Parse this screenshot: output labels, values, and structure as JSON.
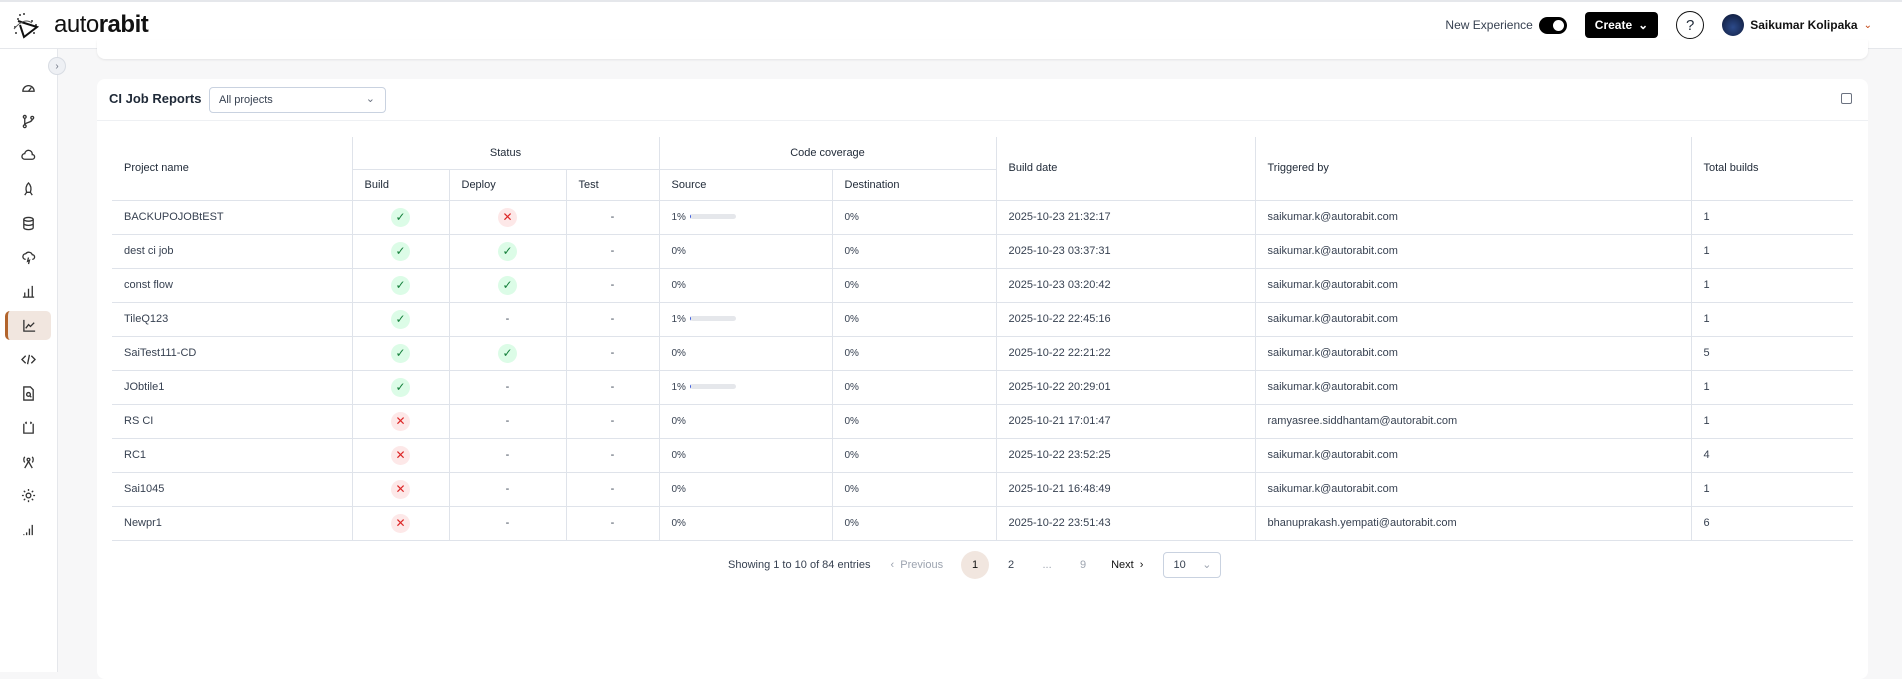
{
  "header": {
    "brand_light": "auto",
    "brand_bold": "rabit",
    "new_experience_label": "New Experience",
    "new_experience_on": true,
    "create_label": "Create",
    "help_label": "?",
    "user_name": "Saikumar Kolipaka"
  },
  "sidebar": {
    "items": [
      {
        "icon": "dashboard-gauge-icon"
      },
      {
        "icon": "git-branch-icon"
      },
      {
        "icon": "cloud-icon"
      },
      {
        "icon": "rocket-icon"
      },
      {
        "icon": "database-icon"
      },
      {
        "icon": "cloud-lightning-icon"
      },
      {
        "icon": "bar-chart-icon"
      },
      {
        "icon": "line-chart-icon",
        "active": true
      },
      {
        "icon": "code-icon"
      },
      {
        "icon": "file-search-icon"
      },
      {
        "icon": "code-file-icon"
      },
      {
        "icon": "antenna-icon"
      },
      {
        "icon": "gear-icon"
      },
      {
        "icon": "signal-icon"
      }
    ]
  },
  "report": {
    "title": "CI Job Reports",
    "project_filter": "All projects",
    "columns": {
      "project": "Project name",
      "status": "Status",
      "build": "Build",
      "deploy": "Deploy",
      "test": "Test",
      "coverage": "Code coverage",
      "source": "Source",
      "destination": "Destination",
      "build_date": "Build date",
      "triggered_by": "Triggered by",
      "total_builds": "Total builds"
    },
    "rows": [
      {
        "project": "BACKUPOJOBtEST",
        "build": "success",
        "deploy": "failed",
        "test": "-",
        "source": "1%",
        "source_pct": 1,
        "destination": "0%",
        "build_date": "2025-10-23 21:32:17",
        "triggered_by": "saikumar.k@autorabit.com",
        "total_builds": "1"
      },
      {
        "project": "dest ci job",
        "build": "success",
        "deploy": "success",
        "test": "-",
        "source": "0%",
        "source_pct": null,
        "destination": "0%",
        "build_date": "2025-10-23 03:37:31",
        "triggered_by": "saikumar.k@autorabit.com",
        "total_builds": "1"
      },
      {
        "project": "const flow",
        "build": "success",
        "deploy": "success",
        "test": "-",
        "source": "0%",
        "source_pct": null,
        "destination": "0%",
        "build_date": "2025-10-23 03:20:42",
        "triggered_by": "saikumar.k@autorabit.com",
        "total_builds": "1"
      },
      {
        "project": "TileQ123",
        "build": "success",
        "deploy": "-",
        "test": "-",
        "source": "1%",
        "source_pct": 1,
        "destination": "0%",
        "build_date": "2025-10-22 22:45:16",
        "triggered_by": "saikumar.k@autorabit.com",
        "total_builds": "1"
      },
      {
        "project": "SaiTest111-CD",
        "build": "success",
        "deploy": "success",
        "test": "-",
        "source": "0%",
        "source_pct": null,
        "destination": "0%",
        "build_date": "2025-10-22 22:21:22",
        "triggered_by": "saikumar.k@autorabit.com",
        "total_builds": "5"
      },
      {
        "project": "JObtile1",
        "build": "success",
        "deploy": "-",
        "test": "-",
        "source": "1%",
        "source_pct": 1,
        "destination": "0%",
        "build_date": "2025-10-22 20:29:01",
        "triggered_by": "saikumar.k@autorabit.com",
        "total_builds": "1"
      },
      {
        "project": "RS CI",
        "build": "failed",
        "deploy": "-",
        "test": "-",
        "source": "0%",
        "source_pct": null,
        "destination": "0%",
        "build_date": "2025-10-21 17:01:47",
        "triggered_by": "ramyasree.siddhantam@autorabit.com",
        "total_builds": "1"
      },
      {
        "project": "RC1",
        "build": "failed",
        "deploy": "-",
        "test": "-",
        "source": "0%",
        "source_pct": null,
        "destination": "0%",
        "build_date": "2025-10-22 23:52:25",
        "triggered_by": "saikumar.k@autorabit.com",
        "total_builds": "4"
      },
      {
        "project": "Sai1045",
        "build": "failed",
        "deploy": "-",
        "test": "-",
        "source": "0%",
        "source_pct": null,
        "destination": "0%",
        "build_date": "2025-10-21 16:48:49",
        "triggered_by": "saikumar.k@autorabit.com",
        "total_builds": "1"
      },
      {
        "project": "Newpr1",
        "build": "failed",
        "deploy": "-",
        "test": "-",
        "source": "0%",
        "source_pct": null,
        "destination": "0%",
        "build_date": "2025-10-22 23:51:43",
        "triggered_by": "bhanuprakash.yempati@autorabit.com",
        "total_builds": "6"
      }
    ],
    "pagination": {
      "summary": "Showing 1 to 10 of 84 entries",
      "previous": "Previous",
      "pages": [
        "1",
        "2",
        "...",
        "9"
      ],
      "current": "1",
      "next": "Next",
      "page_size": "10"
    }
  },
  "colors": {
    "accent": "#b2642c",
    "active_bg": "#f1e6df",
    "success": "#16803c",
    "failed": "#dc2626"
  }
}
